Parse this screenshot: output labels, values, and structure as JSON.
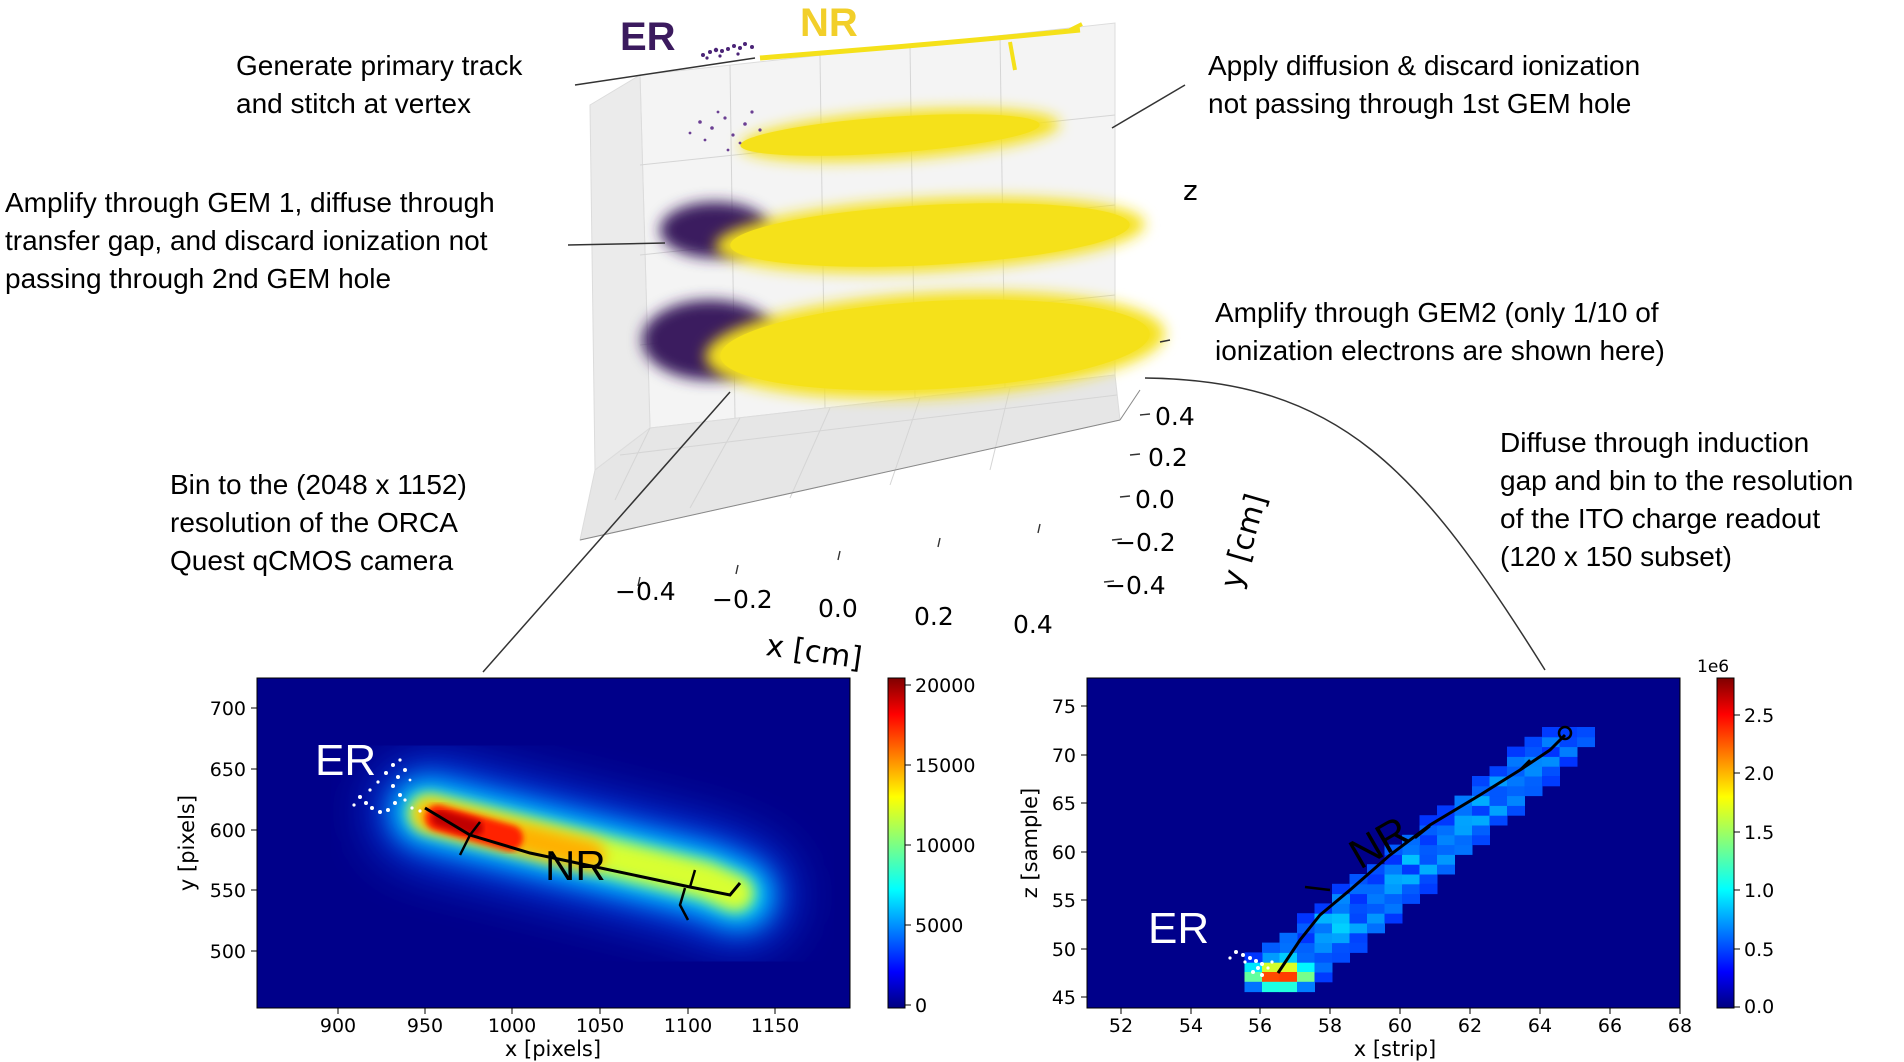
{
  "labels": {
    "er": "ER",
    "nr": "NR"
  },
  "annotations": {
    "primary_track": [
      "Generate primary track",
      "and stitch at vertex"
    ],
    "diffusion": [
      "Apply diffusion & discard ionization",
      "not passing through 1st GEM hole"
    ],
    "gem1": [
      "Amplify through GEM 1, diffuse through",
      "transfer gap, and discard ionization not",
      "passing through 2nd GEM hole"
    ],
    "gem2": [
      "Amplify through GEM2 (only 1/10 of",
      "ionization electrons are shown here)"
    ],
    "camera": [
      "Bin to the (2048 x 1152)",
      "resolution of the ORCA",
      "Quest qCMOS camera"
    ],
    "ito": [
      "Diffuse through induction",
      "gap and bin to the resolution",
      "of the ITO charge readout",
      "(120 x 150 subset)"
    ]
  },
  "plot3d": {
    "x_label": "x [cm]",
    "y_label": "y [cm]",
    "z_label": "z",
    "x_ticks": [
      "−0.4",
      "−0.2",
      "0.0",
      "0.2",
      "0.4"
    ],
    "y_ticks": [
      "0.4",
      "0.2",
      "0.0",
      "−0.2",
      "−0.4"
    ]
  },
  "camera_plot": {
    "x_label": "x [pixels]",
    "y_label": "y [pixels]",
    "x_ticks": [
      "900",
      "950",
      "1000",
      "1050",
      "1100",
      "1150"
    ],
    "y_ticks": [
      "700",
      "650",
      "600",
      "550",
      "500"
    ],
    "colorbar_ticks": [
      "20000",
      "15000",
      "10000",
      "5000",
      "0"
    ],
    "er_label": "ER",
    "nr_label": "NR"
  },
  "ito_plot": {
    "x_label": "x [strip]",
    "y_label": "z [sample]",
    "x_ticks": [
      "52",
      "54",
      "56",
      "58",
      "60",
      "62",
      "64",
      "66",
      "68"
    ],
    "y_ticks": [
      "75",
      "70",
      "65",
      "60",
      "55",
      "50",
      "45"
    ],
    "colorbar_ticks": [
      "2.5",
      "2.0",
      "1.5",
      "1.0",
      "0.5",
      "0.0"
    ],
    "colorbar_scale": "1e6",
    "er_label": "ER",
    "nr_label": "NR"
  },
  "colors": {
    "er": "#3b1a5e",
    "nr": "#f5e11a",
    "heatmap_bg": "#00008a"
  }
}
